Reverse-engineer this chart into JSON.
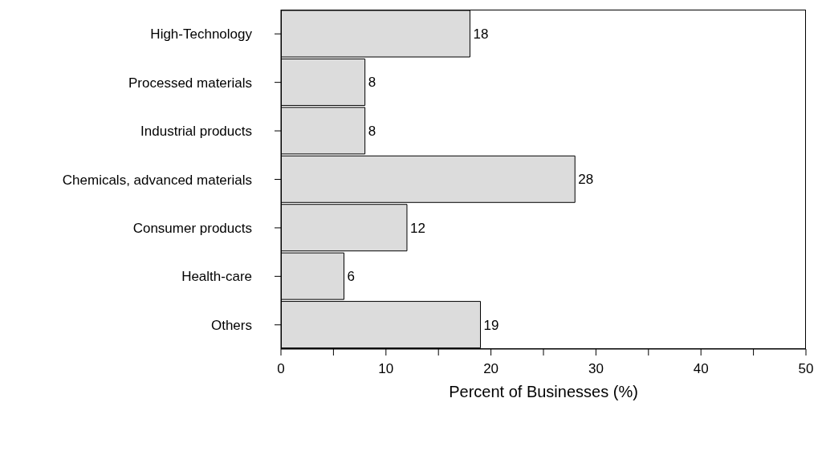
{
  "chart_data": {
    "type": "bar",
    "orientation": "horizontal",
    "xlabel": "Percent of Businesses (%)",
    "categories": [
      "High-Technology",
      "Processed materials",
      "Industrial products",
      "Chemicals, advanced materials",
      "Consumer products",
      "Health-care",
      "Others"
    ],
    "values": [
      18,
      8,
      8,
      28,
      12,
      6,
      19
    ],
    "color": "#dcdcdc",
    "data_labels": true,
    "grid": false,
    "xlim": [
      0,
      50
    ],
    "xticks": [
      0,
      {
        "value": 5,
        "label": null
      },
      10,
      {
        "value": 15,
        "label": null
      },
      20,
      {
        "value": 25,
        "label": null
      },
      30,
      {
        "value": 35,
        "label": null
      },
      40,
      {
        "value": 45,
        "label": null
      },
      50
    ]
  }
}
